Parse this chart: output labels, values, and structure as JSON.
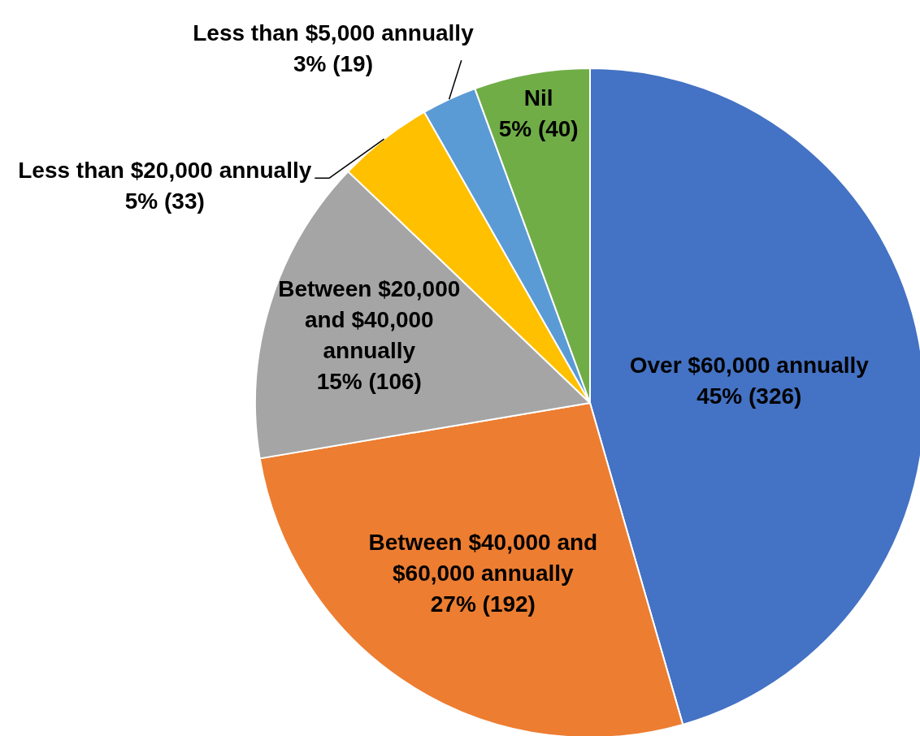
{
  "chart_data": {
    "type": "pie",
    "categories": [
      "Over $60,000 annually",
      "Between $40,000 and $60,000 annually",
      "Between $20,000 and $40,000 annually",
      "Less than $20,000 annually",
      "Less than $5,000 annually",
      "Nil"
    ],
    "values": [
      326,
      192,
      106,
      33,
      19,
      40
    ],
    "colors": [
      "#4472c4",
      "#ed7d31",
      "#a5a5a5",
      "#ffc000",
      "#5b9bd5",
      "#70ad47"
    ],
    "value_labels": [
      "45% (326)",
      "27% (192)",
      "15% (106)",
      "5% (33)",
      "3% (19)",
      "5% (40)"
    ]
  }
}
